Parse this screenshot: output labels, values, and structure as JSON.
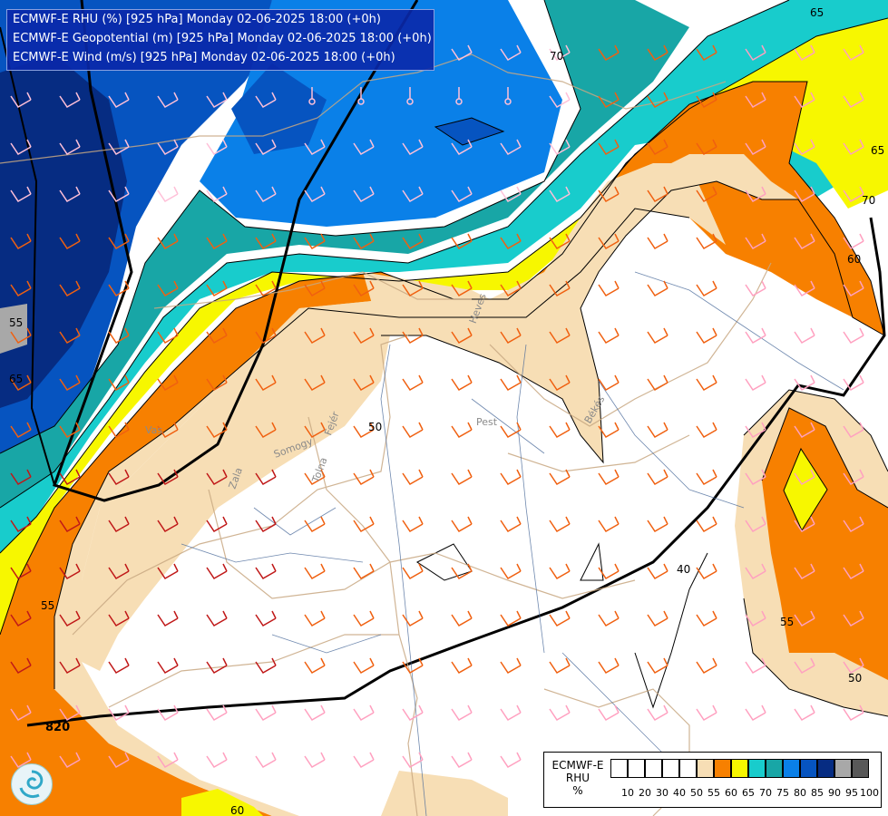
{
  "title_lines": [
    "ECMWF-E RHU (%) [925 hPa] Monday 02-06-2025 18:00 (+0h)",
    "ECMWF-E Geopotential (m) [925 hPa] Monday 02-06-2025 18:00 (+0h)",
    "ECMWF-E Wind (m/s) [925 hPa] Monday 02-06-2025 18:00 (+0h)"
  ],
  "legend": {
    "title_lines": [
      "ECMWF-E",
      "RHU",
      "%"
    ],
    "ticks": [
      "10",
      "20",
      "30",
      "40",
      "50",
      "55",
      "60",
      "65",
      "70",
      "75",
      "80",
      "85",
      "90",
      "95",
      "100"
    ],
    "colors": [
      "#ffffff",
      "#ffffff",
      "#ffffff",
      "#ffffff",
      "#ffffff",
      "#f7deb5",
      "#f78000",
      "#f7f700",
      "#18cccc",
      "#18a6a6",
      "#0a80e8",
      "#0654c0",
      "#062c82",
      "#a8a8a8",
      "#585858"
    ]
  },
  "contour_labels": {
    "rhu": [
      "65",
      "70",
      "65",
      "70",
      "60",
      "50",
      "55",
      "55",
      "50",
      "60",
      "40",
      "55",
      "65"
    ],
    "geopotential": [
      "820"
    ]
  },
  "region_labels": [
    "Vas",
    "Zala",
    "Somogy",
    "Tolna",
    "Fejér",
    "Pest",
    "Heves",
    "Békés"
  ]
}
